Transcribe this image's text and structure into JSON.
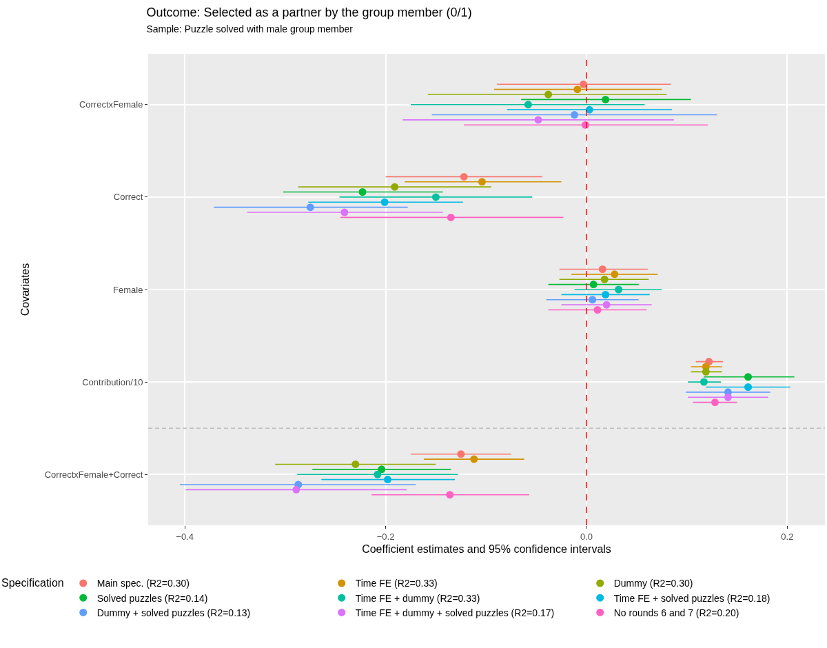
{
  "chart_data": {
    "type": "scatter",
    "orientation": "horizontal",
    "title": "Outcome: Selected as a partner by the group member (0/1)",
    "subtitle": "Sample: Puzzle solved with male group member",
    "xlabel": "Coefficient estimates and 95% confidence intervals",
    "ylabel": "Covariates",
    "legend_title": "Specification",
    "legend": "bottom",
    "grid": true,
    "marker": "circle",
    "categories": [
      "CorrectxFemale",
      "Correct",
      "Female",
      "Contribution/10",
      "CorrectxFemale+Correct"
    ],
    "xlim": [
      -0.4365,
      0.2375
    ],
    "xticks": [
      {
        "value": -0.4,
        "label": "−0.4"
      },
      {
        "value": -0.2,
        "label": "−0.2"
      },
      {
        "value": 0,
        "label": "0.0"
      },
      {
        "value": 0.2,
        "label": "0.2"
      }
    ],
    "ref_lines": [
      {
        "axis": "x",
        "value": 0,
        "color": "#ff0000",
        "line_style": "dashed"
      }
    ],
    "series": [
      {
        "name": "Main spec. (R2=0.30)",
        "color": "#f8766d",
        "values": [
          -0.003,
          -0.122,
          0.016,
          0.122,
          -0.125
        ],
        "errors": [
          [
            -0.089,
            0.084
          ],
          [
            -0.2,
            -0.044
          ],
          [
            -0.027,
            0.061
          ],
          [
            0.109,
            0.136
          ],
          [
            -0.175,
            -0.075
          ]
        ]
      },
      {
        "name": "Time FE (R2=0.33)",
        "color": "#d39200",
        "values": [
          -0.009,
          -0.104,
          0.028,
          0.119,
          -0.112
        ],
        "errors": [
          [
            -0.092,
            0.075
          ],
          [
            -0.181,
            -0.025
          ],
          [
            -0.015,
            0.071
          ],
          [
            0.104,
            0.135
          ],
          [
            -0.162,
            -0.062
          ]
        ]
      },
      {
        "name": "Dummy (R2=0.30)",
        "color": "#93aa00",
        "values": [
          -0.038,
          -0.191,
          0.018,
          0.119,
          -0.23
        ],
        "errors": [
          [
            -0.158,
            0.08
          ],
          [
            -0.287,
            -0.095
          ],
          [
            -0.027,
            0.062
          ],
          [
            0.104,
            0.135
          ],
          [
            -0.31,
            -0.15
          ]
        ]
      },
      {
        "name": "Solved puzzles (R2=0.14)",
        "color": "#00ba38",
        "values": [
          0.019,
          -0.223,
          0.007,
          0.161,
          -0.204
        ],
        "errors": [
          [
            -0.065,
            0.104
          ],
          [
            -0.302,
            -0.143
          ],
          [
            -0.038,
            0.052
          ],
          [
            0.117,
            0.207
          ],
          [
            -0.273,
            -0.135
          ]
        ]
      },
      {
        "name": "Time FE + dummy (R2=0.33)",
        "color": "#00c19f",
        "values": [
          -0.058,
          -0.15,
          0.032,
          0.117,
          -0.208
        ],
        "errors": [
          [
            -0.175,
            0.058
          ],
          [
            -0.246,
            -0.054
          ],
          [
            -0.012,
            0.075
          ],
          [
            0.101,
            0.134
          ],
          [
            -0.288,
            -0.128
          ]
        ]
      },
      {
        "name": "Time FE + solved puzzles (R2=0.18)",
        "color": "#00b9e3",
        "values": [
          0.003,
          -0.201,
          0.019,
          0.161,
          -0.198
        ],
        "errors": [
          [
            -0.079,
            0.085
          ],
          [
            -0.277,
            -0.123
          ],
          [
            -0.025,
            0.063
          ],
          [
            0.119,
            0.203
          ],
          [
            -0.264,
            -0.131
          ]
        ]
      },
      {
        "name": "Dummy + solved puzzles (R2=0.13)",
        "color": "#619cff",
        "values": [
          -0.012,
          -0.275,
          0.006,
          0.141,
          -0.287
        ],
        "errors": [
          [
            -0.154,
            0.13
          ],
          [
            -0.371,
            -0.178
          ],
          [
            -0.04,
            0.052
          ],
          [
            0.099,
            0.183
          ],
          [
            -0.405,
            -0.17
          ]
        ]
      },
      {
        "name": "Time FE + dummy + solved puzzles (R2=0.17)",
        "color": "#db72fb",
        "values": [
          -0.048,
          -0.241,
          0.02,
          0.141,
          -0.289
        ],
        "errors": [
          [
            -0.183,
            0.087
          ],
          [
            -0.338,
            -0.143
          ],
          [
            -0.025,
            0.065
          ],
          [
            0.101,
            0.181
          ],
          [
            -0.399,
            -0.179
          ]
        ]
      },
      {
        "name": "No rounds 6 and 7 (R2=0.20)",
        "color": "#ff61c3",
        "values": [
          -0.001,
          -0.135,
          0.011,
          0.128,
          -0.136
        ],
        "errors": [
          [
            -0.122,
            0.121
          ],
          [
            -0.245,
            -0.023
          ],
          [
            -0.038,
            0.06
          ],
          [
            0.106,
            0.15
          ],
          [
            -0.214,
            -0.057
          ]
        ]
      }
    ]
  }
}
